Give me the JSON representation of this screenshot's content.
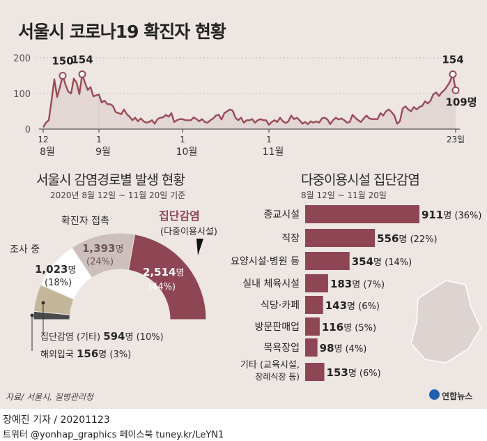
{
  "title": "서울시 코로나19 확진자 현황",
  "chart_data": [
    {
      "type": "area",
      "name": "daily-confirmed",
      "ylim": [
        0,
        200
      ],
      "yticks": [
        "0",
        "100",
        "200"
      ],
      "xtick_days": [
        "12",
        "1",
        "1",
        "1",
        "23일"
      ],
      "xtick_months": [
        "8월",
        "9월",
        "10월",
        "11월"
      ],
      "values": [
        5,
        18,
        25,
        80,
        140,
        90,
        118,
        150,
        125,
        105,
        100,
        142,
        130,
        98,
        154,
        130,
        110,
        118,
        92,
        95,
        97,
        75,
        80,
        70,
        70,
        65,
        48,
        45,
        42,
        55,
        42,
        35,
        25,
        32,
        22,
        30,
        22,
        18,
        20,
        25,
        15,
        28,
        32,
        33,
        40,
        35,
        45,
        20,
        25,
        28,
        28,
        25,
        25,
        25,
        33,
        28,
        22,
        28,
        20,
        18,
        25,
        30,
        38,
        40,
        27,
        45,
        50,
        55,
        52,
        32,
        25,
        32,
        18,
        25,
        25,
        28,
        18,
        25,
        28,
        25,
        25,
        12,
        20,
        25,
        20,
        32,
        22,
        17,
        22,
        38,
        28,
        32,
        25,
        15,
        20,
        14,
        22,
        18,
        22,
        18,
        30,
        32,
        27,
        14,
        25,
        32,
        27,
        30,
        25,
        18,
        20,
        40,
        32,
        25,
        20,
        30,
        38,
        30,
        28,
        28,
        28,
        45,
        38,
        50,
        55,
        48,
        38,
        15,
        22,
        58,
        64,
        55,
        50,
        62,
        55,
        62,
        65,
        78,
        72,
        80,
        98,
        103,
        93,
        103,
        110,
        121,
        134,
        154,
        109
      ],
      "annotations": [
        {
          "value": "150"
        },
        {
          "value": "154"
        },
        {
          "value": "154"
        },
        {
          "value": "109명"
        }
      ]
    },
    {
      "type": "pie",
      "name": "infection-routes",
      "title": "서울시 감염경로별 발생 현황",
      "subtitle": "2020년 8월 12일 ~ 11월 20일 기준",
      "slices": [
        {
          "label": "해외입국",
          "count": "156",
          "unit": "명",
          "pct": "(3%)",
          "value": 3,
          "color": "#4a4a4a"
        },
        {
          "label": "집단감염 (기타)",
          "count": "594",
          "unit": "명",
          "pct": "(10%)",
          "value": 10,
          "color": "#c4b69a"
        },
        {
          "label": "조사 중",
          "count": "1,023",
          "unit": "명",
          "pct": "(18%)",
          "value": 18,
          "color": "#ffffff"
        },
        {
          "label": "확진자 접촉",
          "count": "1,393",
          "unit": "명",
          "pct": "(24%)",
          "value": 24,
          "color": "#cdbfbb"
        },
        {
          "label": "집단감염",
          "sublabel": "(다중이용시설)",
          "count": "2,514",
          "unit": "명",
          "pct": "(44%)",
          "value": 44,
          "color": "#8e4654"
        }
      ]
    },
    {
      "type": "bar",
      "name": "multi-use-facility-clusters",
      "title": "다중이용시설 집단감염",
      "subtitle": "8월 12일 ~ 11월 20일",
      "bars": [
        {
          "label": "종교시설",
          "value": 911,
          "count": "911",
          "unit": "명",
          "pct": "(36%)"
        },
        {
          "label": "직장",
          "value": 556,
          "count": "556",
          "unit": "명",
          "pct": "(22%)"
        },
        {
          "label": "요양시설·병원 등",
          "value": 354,
          "count": "354",
          "unit": "명",
          "pct": "(14%)"
        },
        {
          "label": "실내 체육시설",
          "value": 183,
          "count": "183",
          "unit": "명",
          "pct": "(7%)"
        },
        {
          "label": "식당·카페",
          "value": 143,
          "count": "143",
          "unit": "명",
          "pct": "(6%)"
        },
        {
          "label": "방문판매업",
          "value": 116,
          "count": "116",
          "unit": "명",
          "pct": "(5%)"
        },
        {
          "label": "목욕장업",
          "value": 98,
          "count": "98",
          "unit": "명",
          "pct": "(4%)"
        },
        {
          "label": "기타",
          "label2": "(교육시설,",
          "label3": "장례식장 등)",
          "value": 153,
          "count": "153",
          "unit": "명",
          "pct": "(6%)"
        }
      ]
    }
  ],
  "source": "자료/ 서울시, 질병관리청",
  "logo": "연합뉴스",
  "byline": "장예진 기자 / 20201123",
  "social": "트위터 @yonhap_graphics  페이스북 tuney.kr/LeYN1",
  "colors": {
    "accent": "#8e4654",
    "line": "#9a4a55",
    "area": "#e2d7d4"
  }
}
